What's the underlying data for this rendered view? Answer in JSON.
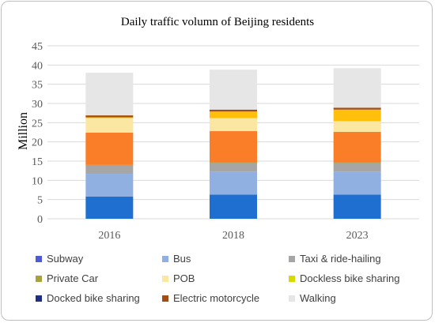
{
  "chart_data": {
    "type": "bar",
    "stacked": true,
    "title": "Daily traffic volumn of Beijing residents",
    "xlabel": "",
    "ylabel": "Million",
    "ylim": [
      0,
      45
    ],
    "yticks": [
      0,
      5,
      10,
      15,
      20,
      25,
      30,
      35,
      40,
      45
    ],
    "grid": true,
    "legend": "bottom",
    "categories": [
      "2016",
      "2018",
      "2023"
    ],
    "series": [
      {
        "name": "Subway",
        "color": "#1f6fd1",
        "values": [
          5.8,
          6.3,
          6.3
        ]
      },
      {
        "name": "Bus",
        "color": "#8fb0e0",
        "values": [
          5.9,
          6.0,
          6.0
        ]
      },
      {
        "name": "Taxi & ride-hailing",
        "color": "#a6a6a6",
        "values": [
          2.1,
          2.2,
          2.2
        ]
      },
      {
        "name": "Private Car",
        "color": "#a7a23a",
        "values": [
          0.2,
          0.1,
          0.1
        ]
      },
      {
        "name": "POB",
        "color": "#fa7d28",
        "values": [
          8.4,
          8.2,
          8.0
        ]
      },
      {
        "name": "Dockless bike sharing",
        "color": "#fce7a2",
        "values": [
          3.8,
          3.4,
          2.8
        ]
      },
      {
        "name": "Docked bike sharing",
        "color": "#ffbf0a",
        "values": [
          0.2,
          1.7,
          3.0
        ]
      },
      {
        "name": "Electric motorcycle",
        "color": "#a04e14",
        "values": [
          0.5,
          0.5,
          0.5
        ]
      },
      {
        "name": "Walking",
        "color": "#e6e6e6",
        "values": [
          11.1,
          10.4,
          10.3
        ]
      }
    ],
    "legend_entries": [
      {
        "label": "Subway",
        "color": "#4f5bd5"
      },
      {
        "label": "Bus",
        "color": "#8fb0e0"
      },
      {
        "label": "Taxi & ride-hailing",
        "color": "#a6a6a6"
      },
      {
        "label": "Private Car",
        "color": "#a7a23a"
      },
      {
        "label": "POB",
        "color": "#fce7a2"
      },
      {
        "label": "Dockless bike sharing",
        "color": "#d9d900"
      },
      {
        "label": "Docked bike sharing",
        "color": "#1f2f80"
      },
      {
        "label": "Electric motorcycle",
        "color": "#a04e14"
      },
      {
        "label": "Walking",
        "color": "#e6e6e6"
      }
    ]
  }
}
